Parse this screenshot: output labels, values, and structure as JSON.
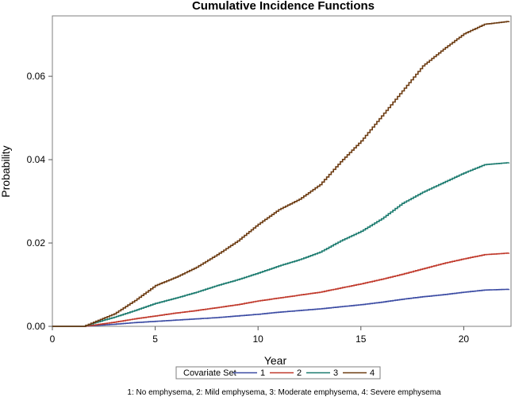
{
  "chart_data": {
    "type": "line",
    "title": "Cumulative Incidence Functions",
    "xlabel": "Year",
    "ylabel": "Probability",
    "xlim": [
      0,
      22.3
    ],
    "ylim": [
      0,
      0.0745
    ],
    "xticks": [
      0,
      5,
      10,
      15,
      20
    ],
    "xtick_labels": [
      "0",
      "5",
      "10",
      "15",
      "20"
    ],
    "yticks": [
      0,
      0.02,
      0.04,
      0.06
    ],
    "ytick_labels": [
      "0.00",
      "0.02",
      "0.04",
      "0.06"
    ],
    "legend_title": "Covariate Set",
    "legend_position": "bottom",
    "footnote": "1: No emphysema, 2: Mild emphysema, 3: Moderate emphysema, 4: Severe emphysema",
    "series": [
      {
        "name": "1",
        "color": "#3b4ba3",
        "x": [
          0,
          1.5,
          2,
          3,
          4,
          5,
          6,
          7,
          8,
          9,
          10,
          11,
          12,
          13,
          14,
          15,
          16,
          17,
          18,
          19,
          20,
          21,
          22.2
        ],
        "y": [
          0,
          0,
          0.0002,
          0.0005,
          0.0009,
          0.0012,
          0.0015,
          0.0018,
          0.0021,
          0.0025,
          0.0029,
          0.0034,
          0.0038,
          0.0042,
          0.0047,
          0.0052,
          0.0058,
          0.0065,
          0.0071,
          0.0076,
          0.0082,
          0.0087,
          0.0089
        ]
      },
      {
        "name": "2",
        "color": "#c0392b",
        "x": [
          0,
          1.5,
          2,
          3,
          4,
          5,
          6,
          7,
          8,
          9,
          10,
          11,
          12,
          13,
          14,
          15,
          16,
          17,
          18,
          19,
          20,
          21,
          22.2
        ],
        "y": [
          0,
          0,
          0.0003,
          0.001,
          0.0018,
          0.0025,
          0.0032,
          0.0038,
          0.0045,
          0.0052,
          0.0061,
          0.0068,
          0.0075,
          0.0082,
          0.0092,
          0.0102,
          0.0113,
          0.0125,
          0.0138,
          0.0151,
          0.0162,
          0.0172,
          0.0176
        ]
      },
      {
        "name": "3",
        "color": "#1a7a6e",
        "x": [
          0,
          1.5,
          2,
          3,
          4,
          5,
          6,
          7,
          8,
          9,
          10,
          11,
          12,
          13,
          14,
          15,
          16,
          17,
          18,
          19,
          20,
          21,
          22.2
        ],
        "y": [
          0,
          0,
          0.0008,
          0.0022,
          0.0038,
          0.0055,
          0.0068,
          0.0082,
          0.0098,
          0.0112,
          0.0128,
          0.0145,
          0.016,
          0.0178,
          0.0205,
          0.0228,
          0.0258,
          0.0295,
          0.0322,
          0.0345,
          0.0368,
          0.0388,
          0.0393
        ]
      },
      {
        "name": "4",
        "color": "#6b3a10",
        "x": [
          0,
          1.5,
          2,
          3,
          4,
          5,
          6,
          7,
          8,
          9,
          10,
          11,
          12,
          13,
          14,
          15,
          16,
          17,
          18,
          19,
          20,
          21,
          22.2
        ],
        "y": [
          0,
          0,
          0.001,
          0.003,
          0.0062,
          0.0098,
          0.0118,
          0.0142,
          0.0172,
          0.0205,
          0.0245,
          0.028,
          0.0305,
          0.034,
          0.0395,
          0.0445,
          0.0505,
          0.0565,
          0.0625,
          0.0665,
          0.0702,
          0.0725,
          0.0732
        ]
      }
    ]
  }
}
